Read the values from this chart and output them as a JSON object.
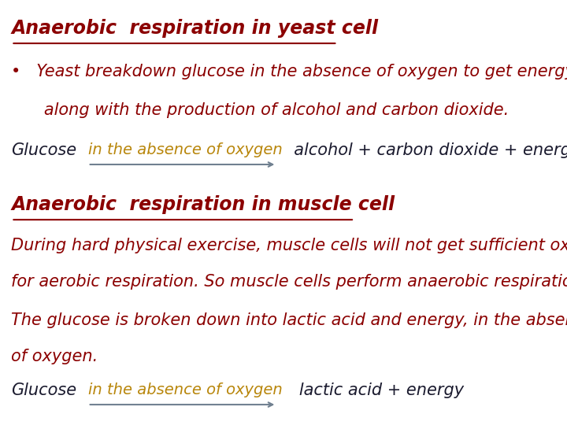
{
  "title1": "Anaerobic  respiration in yeast cell",
  "title2": "Anaerobic  respiration in muscle cell",
  "title_color": "#8B0000",
  "title_fontsize": 17,
  "body_color": "#8B0000",
  "body_fontsize": 15,
  "arrow_label_color": "#B8860B",
  "arrow_color": "#708090",
  "dark_color": "#1a1a2e",
  "bullet1": "•   Yeast breakdown glucose in the absence of oxygen to get energy",
  "bullet2": "   along with the production of alcohol and carbon dioxide.",
  "glucose_line1": "Glucose",
  "arrow_text1": "in the absence of oxygen",
  "product1": "  alcohol + carbon dioxide + energy",
  "para1_line1": "During hard physical exercise, muscle cells will not get sufficient oxygen",
  "para1_line2": "for aerobic respiration. So muscle cells perform anaerobic respiration.",
  "para2_line1": "The glucose is broken down into lactic acid and energy, in the absence",
  "para2_line2": "of oxygen.",
  "glucose_line2": "Glucose",
  "arrow_text2": "in the absence of oxygen",
  "product2": "   lactic acid + energy",
  "bg_color": "#ffffff"
}
